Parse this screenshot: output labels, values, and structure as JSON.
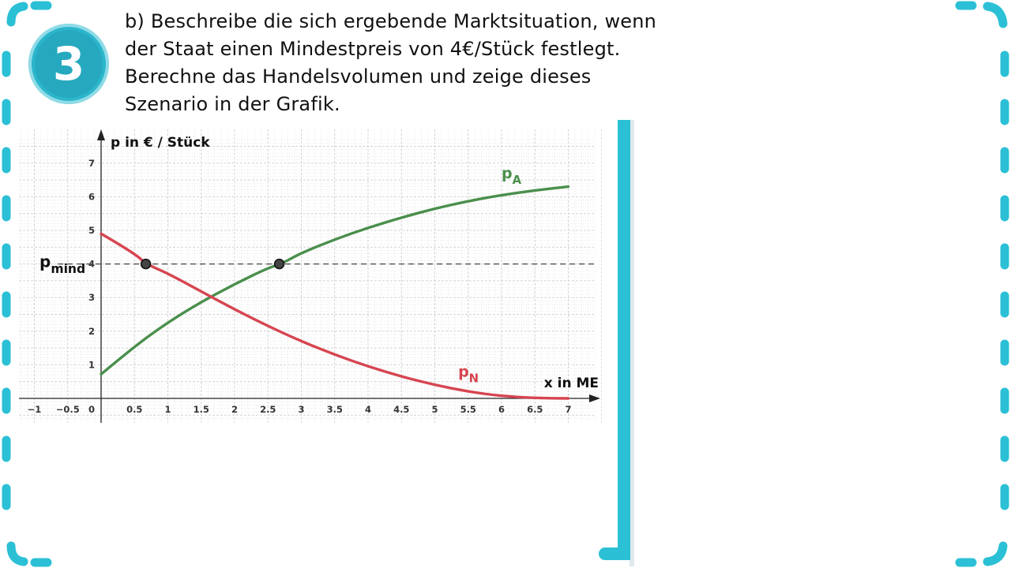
{
  "badge": {
    "number": "3"
  },
  "task": {
    "lines": [
      "b) Beschreibe die sich ergebende Marktsituation, wenn",
      "der Staat einen Mindestpreis von 4€/Stück festlegt.",
      "Berechne das Handelsvolumen und zeige dieses",
      "Szenario in der Grafik."
    ]
  },
  "colors": {
    "accent": "#2bc0d6",
    "supply": "#4a8f4c",
    "demand": "#d64550",
    "grid": "#d4d4d4"
  },
  "chart_data": {
    "type": "line",
    "xlabel": "x in ME",
    "ylabel": "p in € / Stück",
    "xlim": [
      -1.3,
      7.5
    ],
    "ylim": [
      -0.65,
      7.7
    ],
    "x_ticks": [
      "-1",
      "-0.5",
      "0",
      "0.5",
      "1",
      "1.5",
      "2",
      "2.5",
      "3",
      "3.5",
      "4",
      "4.5",
      "5",
      "5.5",
      "6",
      "6.5",
      "7"
    ],
    "y_ticks": [
      "1",
      "2",
      "3",
      "4",
      "5",
      "6",
      "7"
    ],
    "grid": true,
    "series": [
      {
        "name": "p",
        "subscript": "A",
        "color": "#4a8f4c",
        "points": [
          [
            0,
            0.72
          ],
          [
            0.5,
            1.55
          ],
          [
            1,
            2.26
          ],
          [
            1.5,
            2.87
          ],
          [
            2,
            3.4
          ],
          [
            2.5,
            3.88
          ],
          [
            2.7,
            4.0
          ],
          [
            3,
            4.33
          ],
          [
            3.5,
            4.73
          ],
          [
            4,
            5.08
          ],
          [
            4.5,
            5.38
          ],
          [
            5,
            5.65
          ],
          [
            5.5,
            5.87
          ],
          [
            6,
            6.05
          ],
          [
            6.5,
            6.19
          ],
          [
            7,
            6.3
          ]
        ]
      },
      {
        "name": "p",
        "subscript": "N",
        "color": "#d64550",
        "points": [
          [
            0,
            4.9
          ],
          [
            0.5,
            4.32
          ],
          [
            0.67,
            4.0
          ],
          [
            1,
            3.72
          ],
          [
            1.5,
            3.18
          ],
          [
            2,
            2.65
          ],
          [
            2.5,
            2.15
          ],
          [
            3,
            1.7
          ],
          [
            3.5,
            1.3
          ],
          [
            4,
            0.95
          ],
          [
            4.5,
            0.65
          ],
          [
            5,
            0.4
          ],
          [
            5.5,
            0.2
          ],
          [
            6,
            0.07
          ],
          [
            6.5,
            0.01
          ],
          [
            7,
            0.0
          ]
        ]
      }
    ],
    "reference_line": {
      "y": 4,
      "label": "p",
      "subscript": "mind",
      "style": "dashed"
    },
    "markers": [
      {
        "x": 0.67,
        "y": 4
      },
      {
        "x": 2.67,
        "y": 4
      }
    ]
  }
}
